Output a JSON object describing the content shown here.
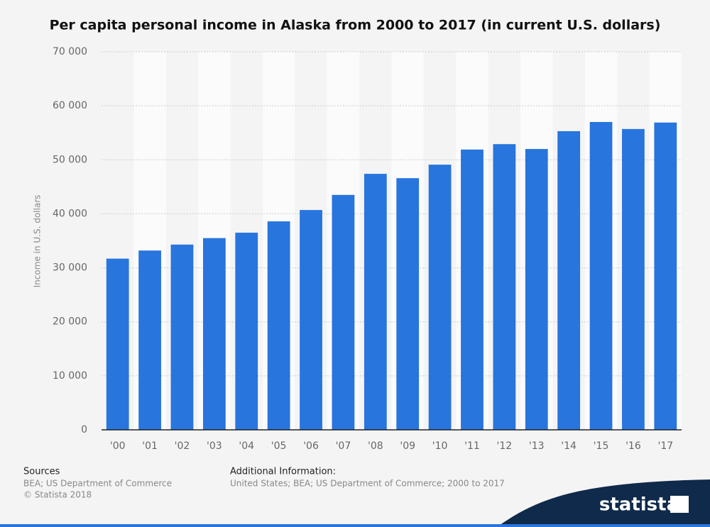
{
  "chart_data": {
    "type": "bar",
    "title": "Per capita personal income in Alaska from 2000 to 2017 (in current U.S. dollars)",
    "y_label": "Income in U.S. dollars",
    "categories": [
      "'00",
      "'01",
      "'02",
      "'03",
      "'04",
      "'05",
      "'06",
      "'07",
      "'08",
      "'09",
      "'10",
      "'11",
      "'12",
      "'13",
      "'14",
      "'15",
      "'16",
      "'17"
    ],
    "values": [
      31700,
      33200,
      34300,
      35500,
      36500,
      38600,
      40700,
      43500,
      47400,
      46600,
      49100,
      51900,
      52900,
      52000,
      55300,
      57000,
      55700,
      56900
    ],
    "color": "#2875dd",
    "ylim": [
      0,
      70000
    ],
    "yticks": [
      {
        "value": 0,
        "label": "0"
      },
      {
        "value": 10000,
        "label": "10 000"
      },
      {
        "value": 20000,
        "label": "20 000"
      },
      {
        "value": 30000,
        "label": "30 000"
      },
      {
        "value": 40000,
        "label": "40 000"
      },
      {
        "value": 50000,
        "label": "50 000"
      },
      {
        "value": 60000,
        "label": "60 000"
      },
      {
        "value": 70000,
        "label": "70 000"
      }
    ],
    "grid": true
  },
  "footer": {
    "sources_title": "Sources",
    "sources": "BEA; US Department of Commerce",
    "copyright": "© Statista 2018",
    "info_title": "Additional Information:",
    "info": "United States; BEA; US Department of Commerce; 2000 to 2017",
    "logo": "statista"
  }
}
